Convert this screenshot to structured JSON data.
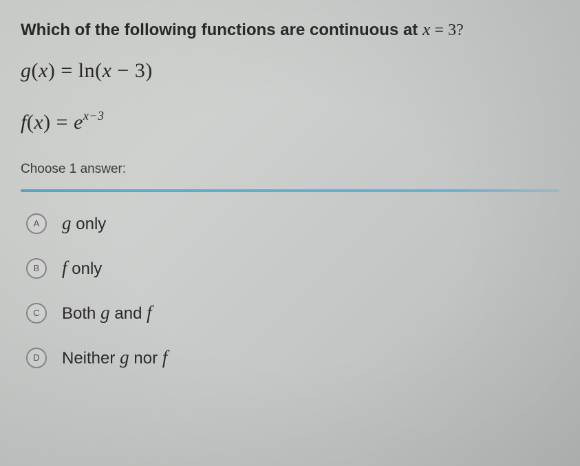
{
  "question": {
    "prompt_prefix": "Which of the following functions are continuous at ",
    "prompt_var": "x",
    "prompt_eq": " = ",
    "prompt_value": "3?",
    "equation1_html": "<span class='fn'>g</span><span class='paren'>(</span><span class='fn'>x</span><span class='paren'>)</span> = ln<span class='paren'>(</span><span class='fn'>x</span> − 3<span class='paren'>)</span>",
    "equation2_html": "<span class='fn'>f</span><span class='paren'>(</span><span class='fn'>x</span><span class='paren'>)</span> = <span class='fn'>e</span><sup>x−3</sup>",
    "choose_label": "Choose 1 answer:"
  },
  "choices": [
    {
      "letter": "A",
      "html": "<span class='mvar'>g</span> <span class='word'>only</span>"
    },
    {
      "letter": "B",
      "html": "<span class='mvar'>f</span> <span class='word'>only</span>"
    },
    {
      "letter": "C",
      "html": "<span class='word'>Both</span> <span class='mvar'>g</span> <span class='word'>and</span> <span class='mvar'>f</span>"
    },
    {
      "letter": "D",
      "html": "<span class='word'>Neither</span> <span class='mvar'>g</span> <span class='word'>nor</span> <span class='mvar'>f</span>"
    }
  ],
  "styling": {
    "background_gradient": [
      "#d8dad7",
      "#c8cbc9",
      "#b8bbb9"
    ],
    "text_color": "#2a2a2a",
    "divider_color": "#5aa8c8",
    "radio_border": "#888888",
    "prompt_fontsize": 24,
    "equation_fontsize": 30,
    "choice_fontsize": 27,
    "radio_diameter": 30
  }
}
